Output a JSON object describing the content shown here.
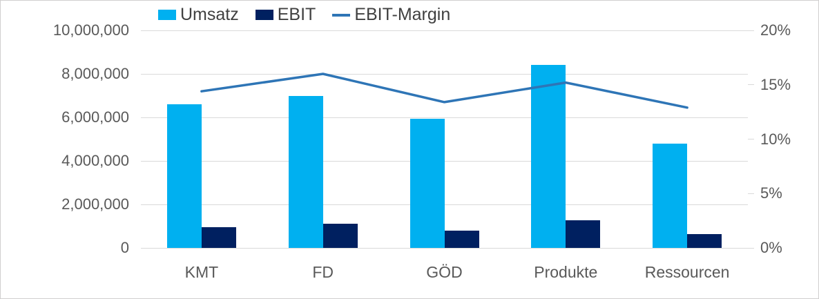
{
  "colors": {
    "umsatz": "#00B0F0",
    "ebit": "#002060",
    "margin_line": "#2E75B6",
    "gridline": "#D9D9D9",
    "axis_text": "#595959",
    "legend_text": "#404040",
    "frame_border": "#D0CECE"
  },
  "chart_data": {
    "type": "bar",
    "subtype": "combo-bar-line-dual-axis",
    "title": "",
    "categories": [
      "KMT",
      "FD",
      "GÖD",
      "Produkte",
      "Ressourcen"
    ],
    "series": [
      {
        "name": "Umsatz",
        "type": "bar",
        "axis": "left",
        "color": "#00B0F0",
        "values": [
          6600000,
          7000000,
          5950000,
          8400000,
          4800000
        ]
      },
      {
        "name": "EBIT",
        "type": "bar",
        "axis": "left",
        "color": "#002060",
        "values": [
          950000,
          1120000,
          800000,
          1280000,
          620000
        ]
      },
      {
        "name": "EBIT-Margin",
        "type": "line",
        "axis": "right",
        "color": "#2E75B6",
        "values": [
          14.4,
          16.0,
          13.4,
          15.2,
          12.9
        ],
        "unit": "%"
      }
    ],
    "left_axis": {
      "min": 0,
      "max": 10000000,
      "tick_labels": [
        "10,000,000",
        "8,000,000",
        "6,000,000",
        "4,000,000",
        "2,000,000",
        "0"
      ]
    },
    "right_axis": {
      "min": 0,
      "max": 20,
      "tick_labels": [
        "20%",
        "15%",
        "10%",
        "5%",
        "0%"
      ]
    },
    "grid": true,
    "legend_position": "top"
  }
}
